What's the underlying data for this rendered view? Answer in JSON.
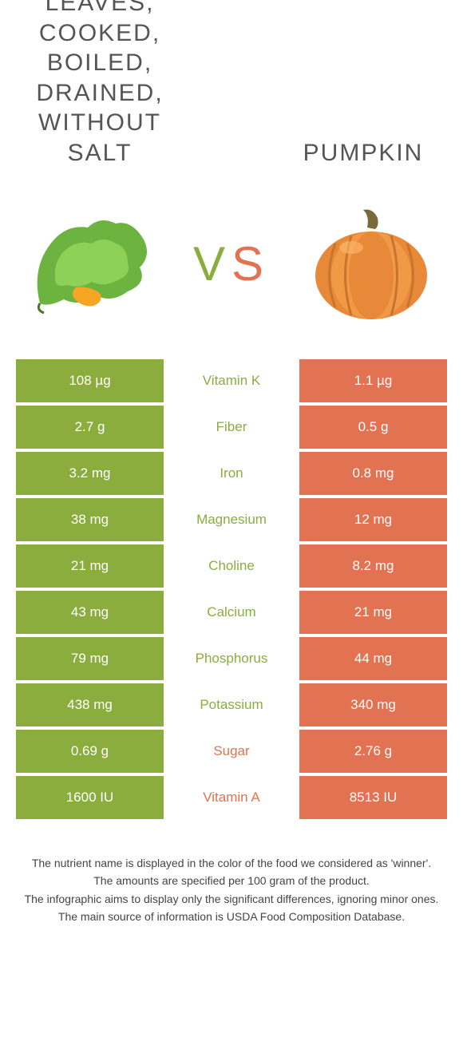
{
  "colors": {
    "left": "#8aad3e",
    "right": "#e17352",
    "text": "#555555",
    "nutrient_left_win": "#8aad3e",
    "nutrient_right_win": "#e17352"
  },
  "header": {
    "left_title": "Pumpkin leaves, cooked, boiled, drained, without salt",
    "right_title": "Pumpkin",
    "vs_v": "V",
    "vs_s": "S"
  },
  "rows": [
    {
      "nutrient": "Vitamin K",
      "left": "108 µg",
      "right": "1.1 µg",
      "winner": "left"
    },
    {
      "nutrient": "Fiber",
      "left": "2.7 g",
      "right": "0.5 g",
      "winner": "left"
    },
    {
      "nutrient": "Iron",
      "left": "3.2 mg",
      "right": "0.8 mg",
      "winner": "left"
    },
    {
      "nutrient": "Magnesium",
      "left": "38 mg",
      "right": "12 mg",
      "winner": "left"
    },
    {
      "nutrient": "Choline",
      "left": "21 mg",
      "right": "8.2 mg",
      "winner": "left"
    },
    {
      "nutrient": "Calcium",
      "left": "43 mg",
      "right": "21 mg",
      "winner": "left"
    },
    {
      "nutrient": "Phosphorus",
      "left": "79 mg",
      "right": "44 mg",
      "winner": "left"
    },
    {
      "nutrient": "Potassium",
      "left": "438 mg",
      "right": "340 mg",
      "winner": "left"
    },
    {
      "nutrient": "Sugar",
      "left": "0.69 g",
      "right": "2.76 g",
      "winner": "right"
    },
    {
      "nutrient": "Vitamin A",
      "left": "1600 IU",
      "right": "8513 IU",
      "winner": "right"
    }
  ],
  "footer": {
    "line1": "The nutrient name is displayed in the color of the food we considered as 'winner'.",
    "line2": "The amounts are specified per 100 gram of the product.",
    "line3": "The infographic aims to display only the significant differences, ignoring minor ones.",
    "line4": "The main source of information is USDA Food Composition Database."
  }
}
